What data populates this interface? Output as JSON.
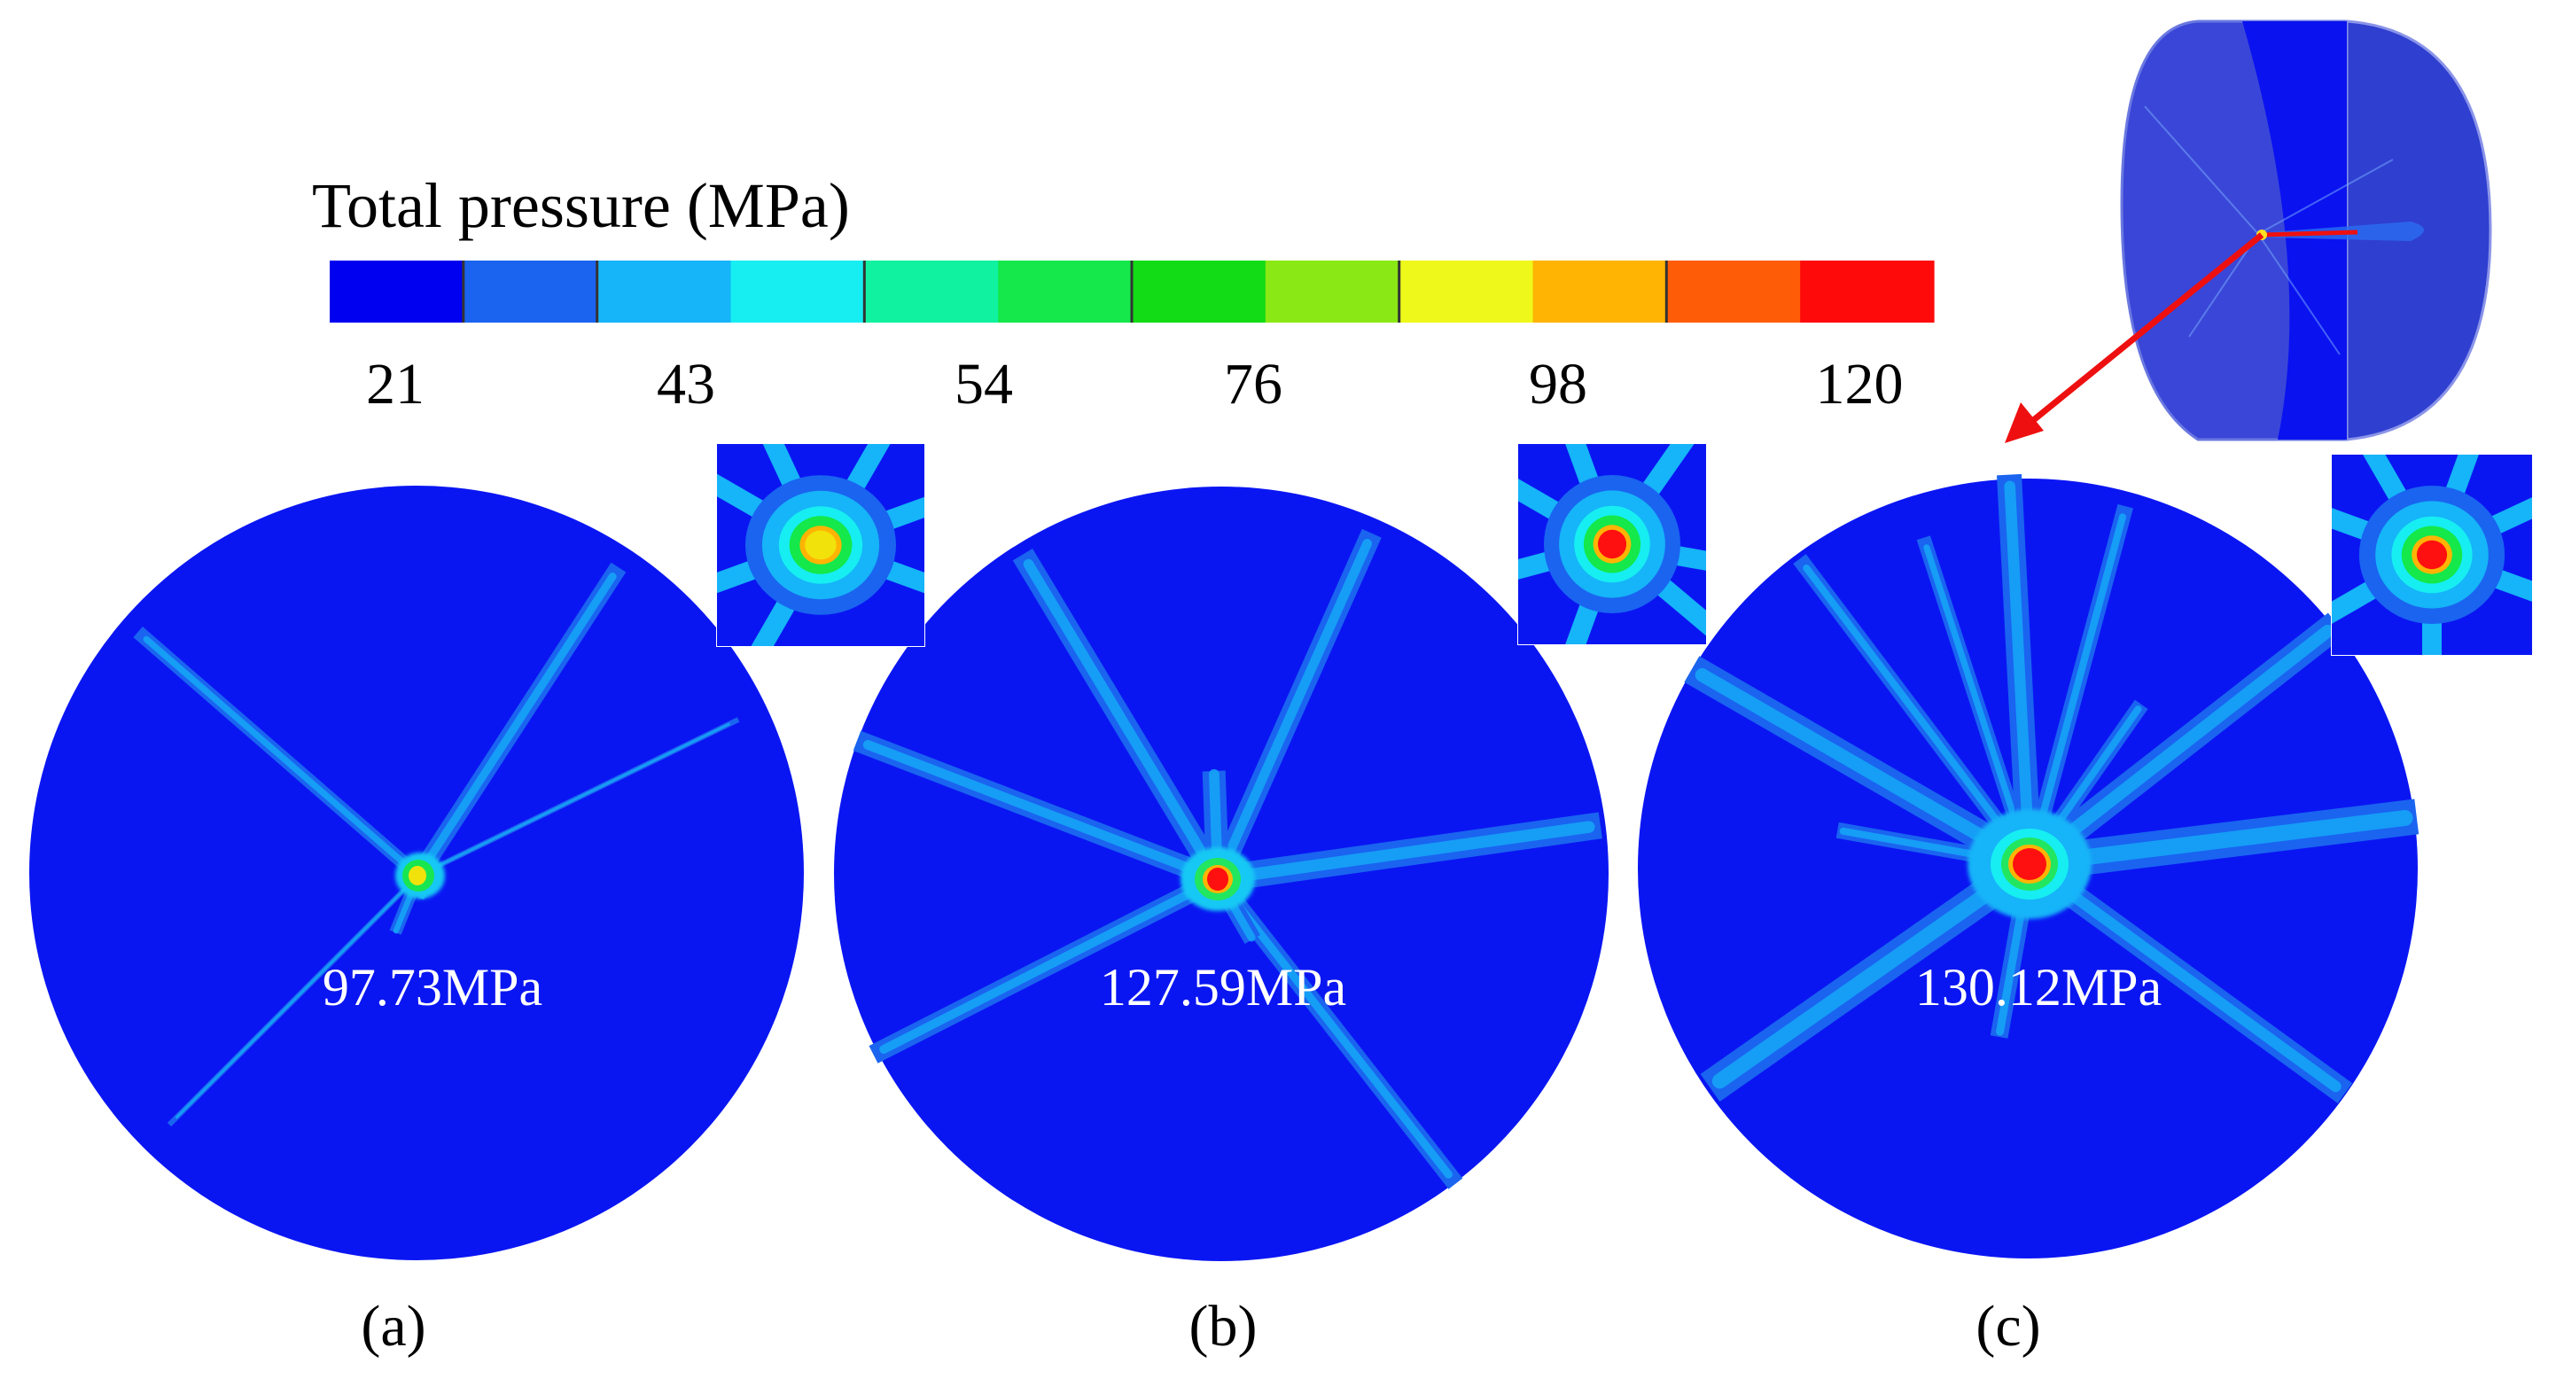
{
  "legend": {
    "title": "Total pressure (MPa)",
    "tick_labels": [
      "21",
      "43",
      "54",
      "76",
      "98",
      "120"
    ],
    "colors": [
      "#0000f0",
      "#1a64f0",
      "#16b4f8",
      "#16eef2",
      "#10f2a0",
      "#14e84a",
      "#12dc16",
      "#8ae814",
      "#eef81a",
      "#ffb404",
      "#ff5c08",
      "#ff0a0a"
    ]
  },
  "panels": [
    {
      "id": "a",
      "label": "(a)",
      "peak": "97.73MPa",
      "core_color": "#f2e20c",
      "mid_color": "#18e650",
      "rays": [
        [
          -139,
          0.97,
          16
        ],
        [
          -57,
          0.96,
          20
        ],
        [
          -26,
          0.93,
          6
        ],
        [
          135,
          0.92,
          6
        ],
        [
          112,
          0.16,
          14
        ],
        [
          78,
          0.06,
          10
        ]
      ]
    },
    {
      "id": "b",
      "label": "(b)",
      "peak": "127.59MPa",
      "core_color": "#ff1010",
      "mid_color": "#22e660",
      "rays": [
        [
          -159,
          1.0,
          24
        ],
        [
          -121,
          0.98,
          26
        ],
        [
          -66,
          0.98,
          24
        ],
        [
          -8,
          1.0,
          30
        ],
        [
          153,
          1.0,
          22
        ],
        [
          52,
          1.0,
          20
        ],
        [
          -92,
          0.28,
          26
        ],
        [
          60,
          0.18,
          20
        ]
      ]
    },
    {
      "id": "c",
      "label": "(c)",
      "peak": "130.12MPa",
      "core_color": "#ff1010",
      "mid_color": "#22e660",
      "rays": [
        [
          -150,
          1.0,
          34
        ],
        [
          -127,
          0.98,
          18
        ],
        [
          -108,
          0.88,
          16
        ],
        [
          -93,
          1.0,
          28
        ],
        [
          -75,
          0.95,
          18
        ],
        [
          -38,
          1.0,
          32
        ],
        [
          -7,
          1.0,
          40
        ],
        [
          145,
          1.0,
          38
        ],
        [
          36,
          1.0,
          28
        ],
        [
          100,
          0.45,
          20
        ],
        [
          -55,
          0.5,
          18
        ],
        [
          -170,
          0.5,
          18
        ]
      ]
    }
  ],
  "inset_colors": [
    "#1a64f0",
    "#16b4f8",
    "#16eef2",
    "#10f2a0",
    "#14e84a",
    "#ffb404",
    "#ff0a0a"
  ],
  "schematic": {
    "body_color": "#3a46d8",
    "face_color": "#0a12f0",
    "arrow_color": "#ee1010"
  }
}
